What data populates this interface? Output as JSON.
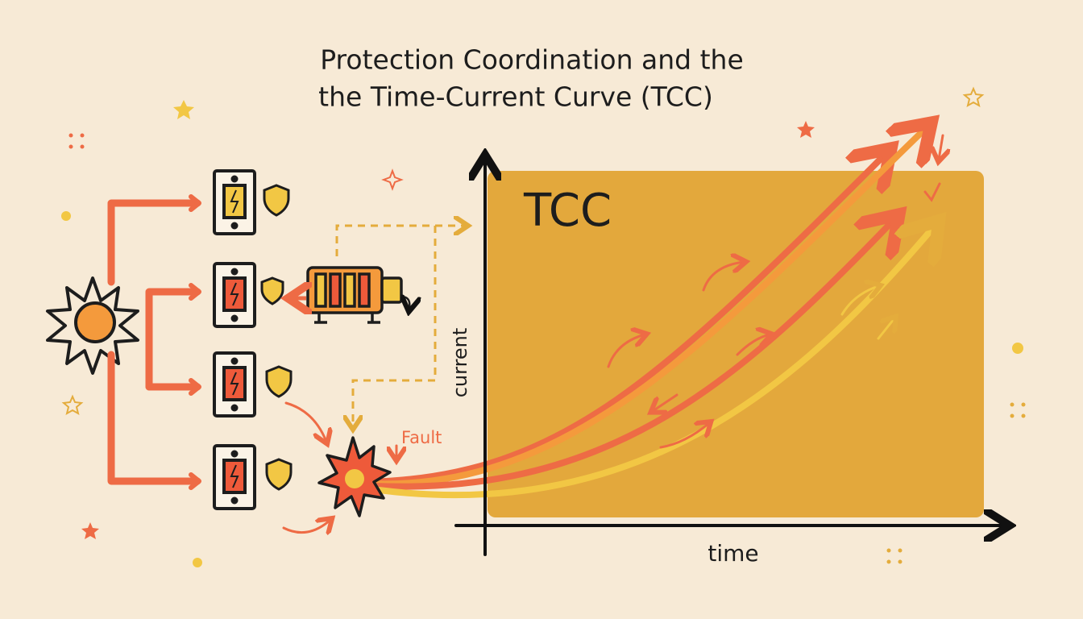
{
  "title": {
    "lines": [
      "Protection Coordination and the",
      "the Time-Current Curve (TCC)"
    ]
  },
  "chart": {
    "label": "TCC",
    "y_axis_label": "current",
    "x_axis_label": "time"
  },
  "fault_label": "Fault"
}
